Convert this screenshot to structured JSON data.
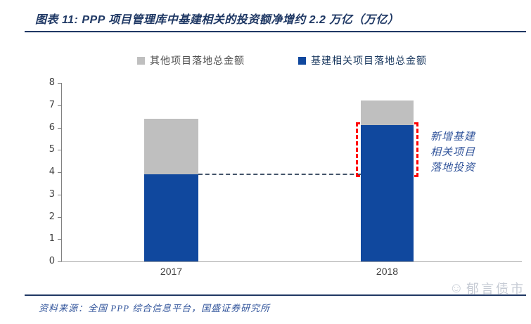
{
  "figure": {
    "title": "图表 11: PPP 项目管理库中基建相关的投资额净增约 2.2 万亿（万亿）",
    "source": "资料来源：全国 PPP 综合信息平台，国盛证券研究所",
    "watermark": "郁言债市"
  },
  "colors": {
    "title_navy": "#1F3864",
    "bar_blue": "#10489E",
    "bar_gray": "#BFBFBF",
    "highlight_red": "#FF0000",
    "reference_dash": "#44546A",
    "annotation_blue": "#31549B"
  },
  "legend": [
    {
      "label": "其他项目落地总金额",
      "color": "#BFBFBF",
      "text_color": "#4D4D4D"
    },
    {
      "label": "基建相关项目落地总金额",
      "color": "#10489E",
      "text_color": "#17365D"
    }
  ],
  "chart_data": {
    "type": "bar",
    "stacked": true,
    "categories": [
      "2017",
      "2018"
    ],
    "series": [
      {
        "name": "基建相关项目落地总金额",
        "color": "#10489E",
        "values": [
          3.9,
          6.1
        ]
      },
      {
        "name": "其他项目落地总金额",
        "color": "#BFBFBF",
        "values": [
          2.5,
          1.1
        ]
      }
    ],
    "stack_totals": [
      6.4,
      7.2
    ],
    "ylim": [
      0,
      8
    ],
    "ytick_step": 1,
    "yticks": [
      0,
      1,
      2,
      3,
      4,
      5,
      6,
      7,
      8
    ],
    "grid": false,
    "legend_position": "top",
    "highlight": {
      "category": "2018",
      "category_index": 1,
      "from": 3.9,
      "to": 6.1,
      "label": "新增基建相关项目落地投资",
      "label_lines": [
        "新增基建",
        "相关项目",
        "落地投资"
      ],
      "border_color": "#FF0000"
    },
    "reference_line": {
      "value": 3.9,
      "style": "dashed",
      "color": "#44546A"
    }
  }
}
